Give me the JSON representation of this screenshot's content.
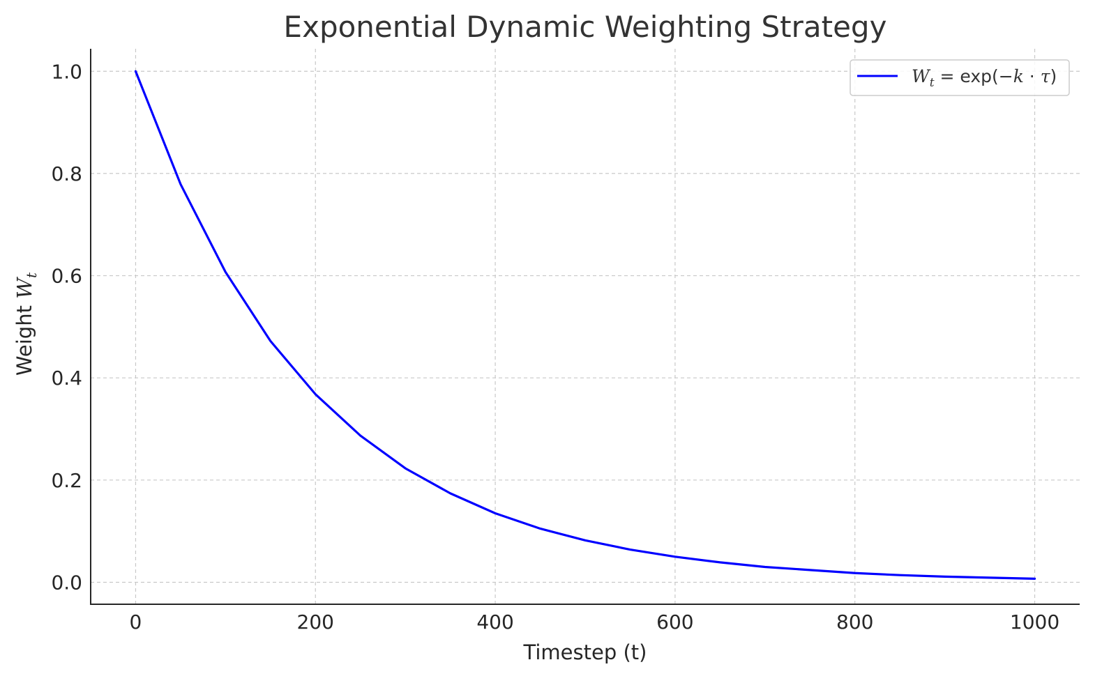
{
  "chart_data": {
    "type": "line",
    "title": "Exponential Dynamic Weighting Strategy",
    "xlabel": "Timestep (t)",
    "ylabel": {
      "prefix": "Weight ",
      "symbol": "W",
      "subscript": "t"
    },
    "xlim": [
      -50,
      1050
    ],
    "ylim": [
      -0.043,
      1.044
    ],
    "xticks": [
      0,
      200,
      400,
      600,
      800,
      1000
    ],
    "xtick_labels": [
      "0",
      "200",
      "400",
      "600",
      "800",
      "1000"
    ],
    "yticks": [
      0.0,
      0.2,
      0.4,
      0.6,
      0.8,
      1.0
    ],
    "ytick_labels": [
      "0.0",
      "0.2",
      "0.4",
      "0.6",
      "0.8",
      "1.0"
    ],
    "grid": true,
    "legend_position": "upper right",
    "series": [
      {
        "name": "W_t = exp(-k·τ)",
        "legend": {
          "lhs_symbol": "W",
          "lhs_subscript": "t",
          "equals": " = ",
          "func": "exp(",
          "minus": "−",
          "k": "k",
          "dot": " · ",
          "tau": "τ",
          "close": ")"
        },
        "color": "#0000ff",
        "x": [
          0,
          50,
          100,
          150,
          200,
          250,
          300,
          350,
          400,
          450,
          500,
          550,
          600,
          650,
          700,
          750,
          800,
          850,
          900,
          950,
          1000
        ],
        "y": [
          1.0,
          0.779,
          0.607,
          0.472,
          0.368,
          0.287,
          0.223,
          0.174,
          0.135,
          0.105,
          0.082,
          0.064,
          0.05,
          0.039,
          0.03,
          0.024,
          0.018,
          0.014,
          0.011,
          0.009,
          0.007
        ]
      }
    ]
  }
}
